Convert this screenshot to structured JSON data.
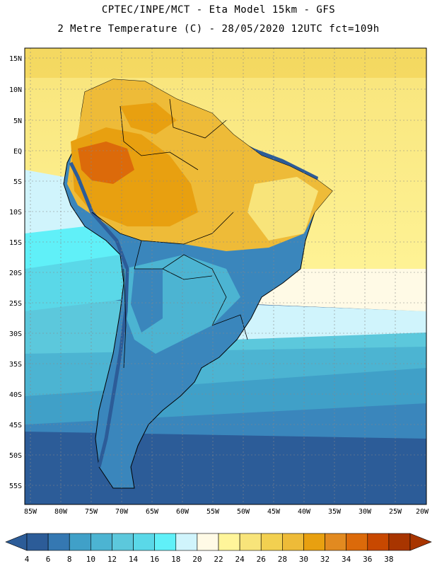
{
  "header": {
    "line1": "CPTEC/INPE/MCT -  Eta Model 15km - GFS",
    "line2": "2 Metre Temperature (C) - 28/05/2020 12UTC fct=109h"
  },
  "map": {
    "lat_labels": [
      "15N",
      "10N",
      "5N",
      "EQ",
      "5S",
      "10S",
      "15S",
      "20S",
      "25S",
      "30S",
      "35S",
      "40S",
      "45S",
      "50S",
      "55S"
    ],
    "lon_labels": [
      "85W",
      "80W",
      "75W",
      "70W",
      "65W",
      "60W",
      "55W",
      "50W",
      "45W",
      "40W",
      "35W",
      "30W",
      "25W",
      "20W"
    ]
  },
  "colorbar": {
    "labels": [
      "4",
      "6",
      "8",
      "10",
      "12",
      "14",
      "16",
      "18",
      "20",
      "22",
      "24",
      "26",
      "28",
      "30",
      "32",
      "34",
      "36",
      "38"
    ],
    "colors": [
      "#2c5c98",
      "#3578b2",
      "#40a0c8",
      "#4cb4d2",
      "#5cc8dc",
      "#5ad8e8",
      "#60f0f8",
      "#d0f4fc",
      "#fffae6",
      "#fff59a",
      "#f8e47a",
      "#f2d050",
      "#eebb38",
      "#e8a010",
      "#e28a20",
      "#dc6a0a",
      "#c84800",
      "#a83500"
    ],
    "low_color": "#2c5c98",
    "high_color": "#a83500"
  }
}
